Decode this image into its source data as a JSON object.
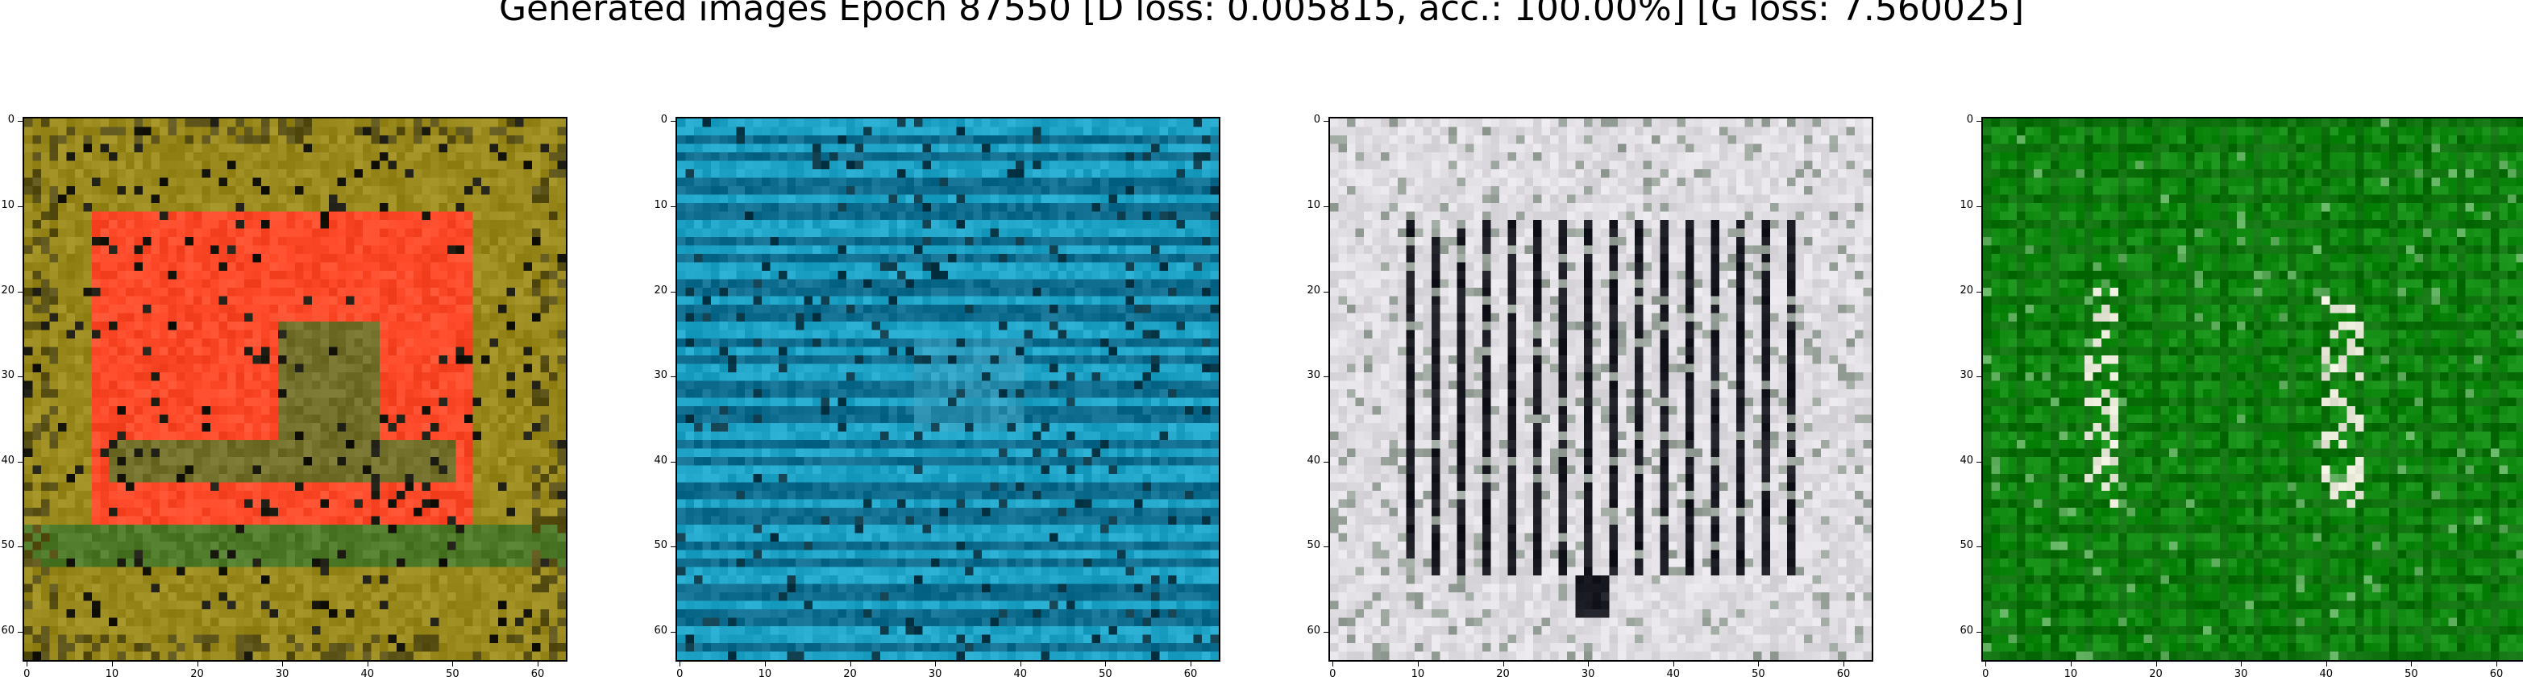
{
  "title": "Generated images Epoch 87550 [D loss: 0.005815, acc.: 100.00%] [G loss: 7.560025]",
  "axes": {
    "y_ticks": [
      "0",
      "10",
      "20",
      "30",
      "40",
      "50",
      "60"
    ],
    "x_ticks": [
      "0",
      "10",
      "20",
      "30",
      "40",
      "50",
      "60"
    ],
    "grid": false
  },
  "panels": [
    {
      "name": "generated-image-1",
      "dominant_colors": [
        "#9a8a1e",
        "#ff4a2a",
        "#4f7a2a",
        "#1a1a10"
      ]
    },
    {
      "name": "generated-image-2",
      "dominant_colors": [
        "#0f6e8f",
        "#2ac8ee",
        "#0a3a4a",
        "#3aa0c0"
      ]
    },
    {
      "name": "generated-image-3",
      "dominant_colors": [
        "#e0dde2",
        "#1a1a22",
        "#c8c0c8",
        "#6a7a6a"
      ]
    },
    {
      "name": "generated-image-4",
      "dominant_colors": [
        "#108a10",
        "#0a5a0a",
        "#60b060",
        "#e8e8d8"
      ]
    }
  ]
}
